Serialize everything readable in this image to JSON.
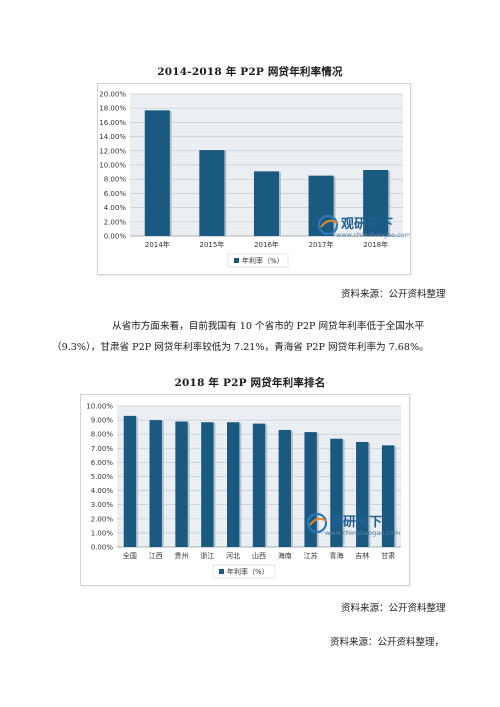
{
  "figure1": {
    "title": "2014-2018 年 P2P 网贷年利率情况",
    "source": "资料来源：公开资料整理",
    "legend": "年利率（%）",
    "watermark": {
      "name": "观研天下",
      "url": "www.chinabaogao.com"
    }
  },
  "paragraph": {
    "line1": "从省市方面来看，目前我国有 10 个省市的 P2P 网贷年利率低于全国水平",
    "line2": "（9.3%），甘肃省 P2P 网贷年利率较低为 7.21%，青海省 P2P 网贷年利率为 7.68%。"
  },
  "figure2": {
    "title": "2018 年 P2P 网贷年利率排名",
    "source": "资料来源：公开资料整理",
    "legend": "年利率（%）",
    "watermark": {
      "name": "观研天下",
      "url": "www.chinabaogao.com"
    }
  },
  "footer": {
    "source": "资料来源：公开资料整理，"
  },
  "chart_data": [
    {
      "type": "bar",
      "title": "2014-2018 年 P2P 网贷年利率情况",
      "categories": [
        "2014年",
        "2015年",
        "2016年",
        "2017年",
        "2018年"
      ],
      "series": [
        {
          "name": "年利率（%）",
          "values": [
            17.7,
            12.1,
            9.1,
            8.5,
            9.3
          ]
        }
      ],
      "yticks": [
        "0.00%",
        "2.00%",
        "4.00%",
        "6.00%",
        "8.00%",
        "10.00%",
        "12.00%",
        "14.00%",
        "16.00%",
        "18.00%",
        "20.00%"
      ],
      "ylim": [
        0,
        20
      ],
      "grid": true,
      "legend_position": "bottom",
      "color": "#1b5a80"
    },
    {
      "type": "bar",
      "title": "2018 年 P2P 网贷年利率排名",
      "categories": [
        "全国",
        "江西",
        "贵州",
        "浙江",
        "河北",
        "山西",
        "海南",
        "江苏",
        "青海",
        "吉林",
        "甘肃"
      ],
      "series": [
        {
          "name": "年利率（%）",
          "values": [
            9.3,
            9.0,
            8.9,
            8.85,
            8.85,
            8.75,
            8.3,
            8.15,
            7.68,
            7.45,
            7.21
          ]
        }
      ],
      "yticks": [
        "0.00%",
        "1.00%",
        "2.00%",
        "3.00%",
        "4.00%",
        "5.00%",
        "6.00%",
        "7.00%",
        "8.00%",
        "9.00%",
        "10.00%"
      ],
      "ylim": [
        0,
        10
      ],
      "grid": true,
      "legend_position": "bottom",
      "color": "#1b5a80"
    }
  ]
}
